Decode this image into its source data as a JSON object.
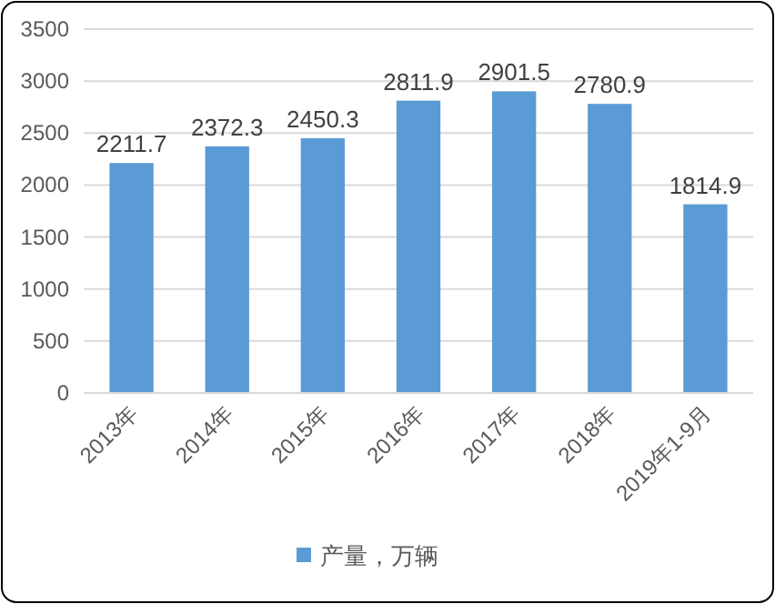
{
  "chart_data": {
    "type": "bar",
    "categories": [
      "2013年",
      "2014年",
      "2015年",
      "2016年",
      "2017年",
      "2018年",
      "2019年1-9月"
    ],
    "series": [
      {
        "name": "产量，万辆",
        "color": "#5b9bd5",
        "values": [
          2211.7,
          2372.3,
          2450.3,
          2811.9,
          2901.5,
          2780.9,
          1814.9
        ]
      }
    ],
    "ylim": [
      0,
      3500
    ],
    "yticks": [
      0,
      500,
      1000,
      1500,
      2000,
      2500,
      3000,
      3500
    ],
    "grid": "y",
    "legend": "bottom",
    "data_labels": true
  }
}
